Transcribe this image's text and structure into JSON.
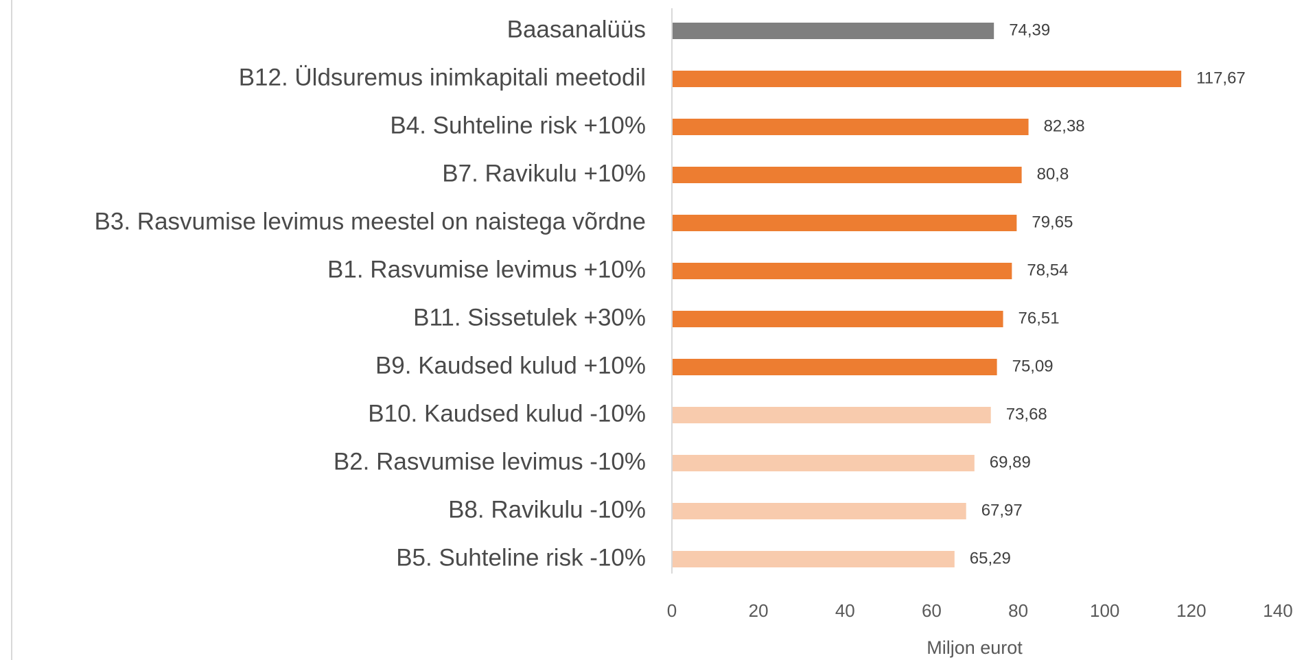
{
  "chart_data": {
    "type": "hbar",
    "categories": [
      "Baasanalüüs",
      "B12. Üldsuremus inimkapitali meetodil",
      "B4. Suhteline risk +10%",
      "B7. Ravikulu +10%",
      "B3. Rasvumise levimus meestel on naistega võrdne",
      "B1. Rasvumise levimus +10%",
      "B11. Sissetulek +30%",
      "B9. Kaudsed kulud +10%",
      "B10. Kaudsed kulud -10%",
      "B2. Rasvumise levimus -10%",
      "B8. Ravikulu -10%",
      "B5. Suhteline risk -10%"
    ],
    "values": [
      74.39,
      117.67,
      82.38,
      80.8,
      79.65,
      78.54,
      76.51,
      75.09,
      73.68,
      69.89,
      67.97,
      65.29
    ],
    "value_labels": [
      "74,39",
      "117,67",
      "82,38",
      "80,8",
      "79,65",
      "78,54",
      "76,51",
      "75,09",
      "73,68",
      "69,89",
      "67,97",
      "65,29"
    ],
    "colors": [
      "#7f7f7f",
      "#ed7d31",
      "#ed7d31",
      "#ed7d31",
      "#ed7d31",
      "#ed7d31",
      "#ed7d31",
      "#ed7d31",
      "#f8cbad",
      "#f8cbad",
      "#f8cbad",
      "#f8cbad"
    ],
    "xlabel": "Miljon eurot",
    "xlim": [
      0,
      140
    ],
    "xticks": [
      0,
      20,
      40,
      60,
      80,
      100,
      120,
      140
    ]
  }
}
